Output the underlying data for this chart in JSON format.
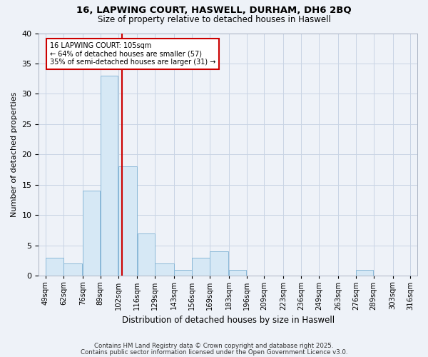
{
  "title1": "16, LAPWING COURT, HASWELL, DURHAM, DH6 2BQ",
  "title2": "Size of property relative to detached houses in Haswell",
  "xlabel": "Distribution of detached houses by size in Haswell",
  "ylabel": "Number of detached properties",
  "bin_edges": [
    49,
    62,
    76,
    89,
    102,
    116,
    129,
    143,
    156,
    169,
    183,
    196,
    209,
    223,
    236,
    249,
    263,
    276,
    289,
    303,
    316
  ],
  "bar_heights": [
    3,
    2,
    14,
    33,
    18,
    7,
    2,
    1,
    3,
    4,
    1,
    0,
    0,
    0,
    0,
    0,
    0,
    1,
    0,
    0
  ],
  "bar_color": "#d6e8f5",
  "bar_edge_color": "#8ab8d8",
  "grid_color": "#c8d4e4",
  "background_color": "#eef2f8",
  "plot_bg_color": "#eef2f8",
  "vline_x": 105,
  "vline_color": "#cc0000",
  "annotation_text": "16 LAPWING COURT: 105sqm\n← 64% of detached houses are smaller (57)\n35% of semi-detached houses are larger (31) →",
  "annotation_box_color": "#ffffff",
  "annotation_border_color": "#cc0000",
  "ylim": [
    0,
    40
  ],
  "yticks": [
    0,
    5,
    10,
    15,
    20,
    25,
    30,
    35,
    40
  ],
  "footer1": "Contains HM Land Registry data © Crown copyright and database right 2025.",
  "footer2": "Contains public sector information licensed under the Open Government Licence v3.0."
}
